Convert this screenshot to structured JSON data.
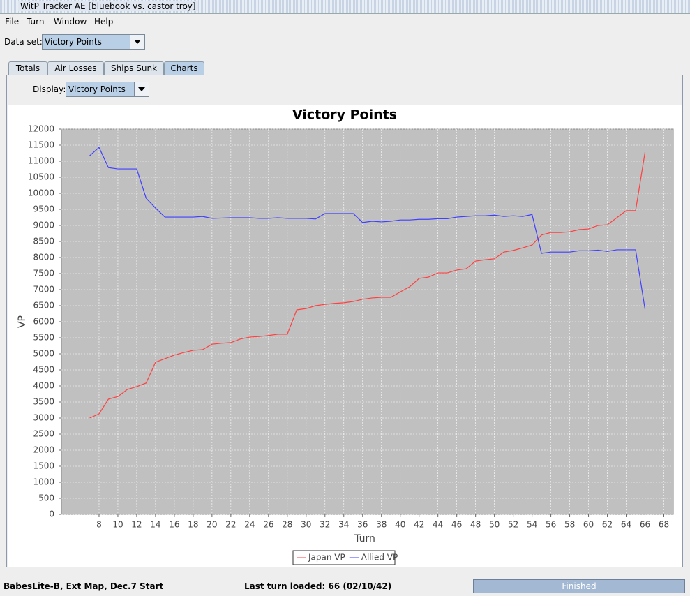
{
  "window": {
    "title": "WitP Tracker AE [bluebook vs. castor troy]",
    "menu": [
      "File",
      "Turn",
      "Window",
      "Help"
    ],
    "dataset_label": "Data set:",
    "dataset_value": "Victory Points",
    "tabs": [
      "Totals",
      "Air Losses",
      "Ships Sunk",
      "Charts"
    ],
    "display_label": "Display:",
    "display_value": "Victory Points",
    "status_left": "BabesLite-B, Ext Map, Dec.7 Start",
    "status_middle": "Last turn loaded: 66 (02/10/42)",
    "status_right": "Finished"
  },
  "chart_data": {
    "type": "line",
    "title": "Victory Points",
    "x_label": "Turn",
    "y_label": "VP",
    "x": [
      7,
      8,
      9,
      10,
      11,
      12,
      13,
      14,
      15,
      16,
      17,
      18,
      19,
      20,
      21,
      22,
      23,
      24,
      25,
      26,
      27,
      28,
      29,
      30,
      31,
      32,
      33,
      34,
      35,
      36,
      37,
      38,
      39,
      40,
      41,
      42,
      43,
      44,
      45,
      46,
      47,
      48,
      49,
      50,
      51,
      52,
      53,
      54,
      55,
      56,
      57,
      58,
      59,
      60,
      61,
      62,
      63,
      64,
      65,
      66
    ],
    "series": [
      {
        "name": "Japan VP",
        "color": "#ff4040",
        "values": [
          3000,
          3130,
          3590,
          3670,
          3890,
          3980,
          4090,
          4740,
          4850,
          4960,
          5040,
          5110,
          5130,
          5300,
          5330,
          5350,
          5460,
          5520,
          5540,
          5570,
          5610,
          5610,
          6370,
          6410,
          6500,
          6540,
          6570,
          6590,
          6630,
          6700,
          6740,
          6760,
          6760,
          6930,
          7090,
          7350,
          7390,
          7520,
          7520,
          7610,
          7650,
          7890,
          7930,
          7960,
          8170,
          8220,
          8300,
          8390,
          8700,
          8780,
          8780,
          8800,
          8870,
          8890,
          9000,
          9020,
          9240,
          9460,
          9460,
          11280
        ]
      },
      {
        "name": "Allied VP",
        "color": "#4040ff",
        "values": [
          11170,
          11430,
          10800,
          10760,
          10760,
          10760,
          9850,
          9540,
          9260,
          9260,
          9260,
          9260,
          9280,
          9220,
          9230,
          9240,
          9240,
          9240,
          9220,
          9220,
          9240,
          9220,
          9220,
          9220,
          9200,
          9370,
          9370,
          9370,
          9370,
          9090,
          9130,
          9110,
          9130,
          9170,
          9170,
          9190,
          9190,
          9210,
          9210,
          9260,
          9280,
          9300,
          9300,
          9320,
          9280,
          9300,
          9280,
          9340,
          8130,
          8170,
          8170,
          8170,
          8210,
          8210,
          8230,
          8190,
          8240,
          8240,
          8240,
          6390
        ]
      }
    ],
    "xlim": [
      4,
      69
    ],
    "ylim": [
      0,
      12000
    ],
    "xticks": [
      8,
      10,
      12,
      14,
      16,
      18,
      20,
      22,
      24,
      26,
      28,
      30,
      32,
      34,
      36,
      38,
      40,
      42,
      44,
      46,
      48,
      50,
      52,
      54,
      56,
      58,
      60,
      62,
      64,
      66,
      68
    ],
    "yticks": [
      0,
      500,
      1000,
      1500,
      2000,
      2500,
      3000,
      3500,
      4000,
      4500,
      5000,
      5500,
      6000,
      6500,
      7000,
      7500,
      8000,
      8500,
      9000,
      9500,
      10000,
      10500,
      11000,
      11500,
      12000
    ],
    "grid": true,
    "background": "#c0c0c0",
    "legend": "bottom"
  }
}
